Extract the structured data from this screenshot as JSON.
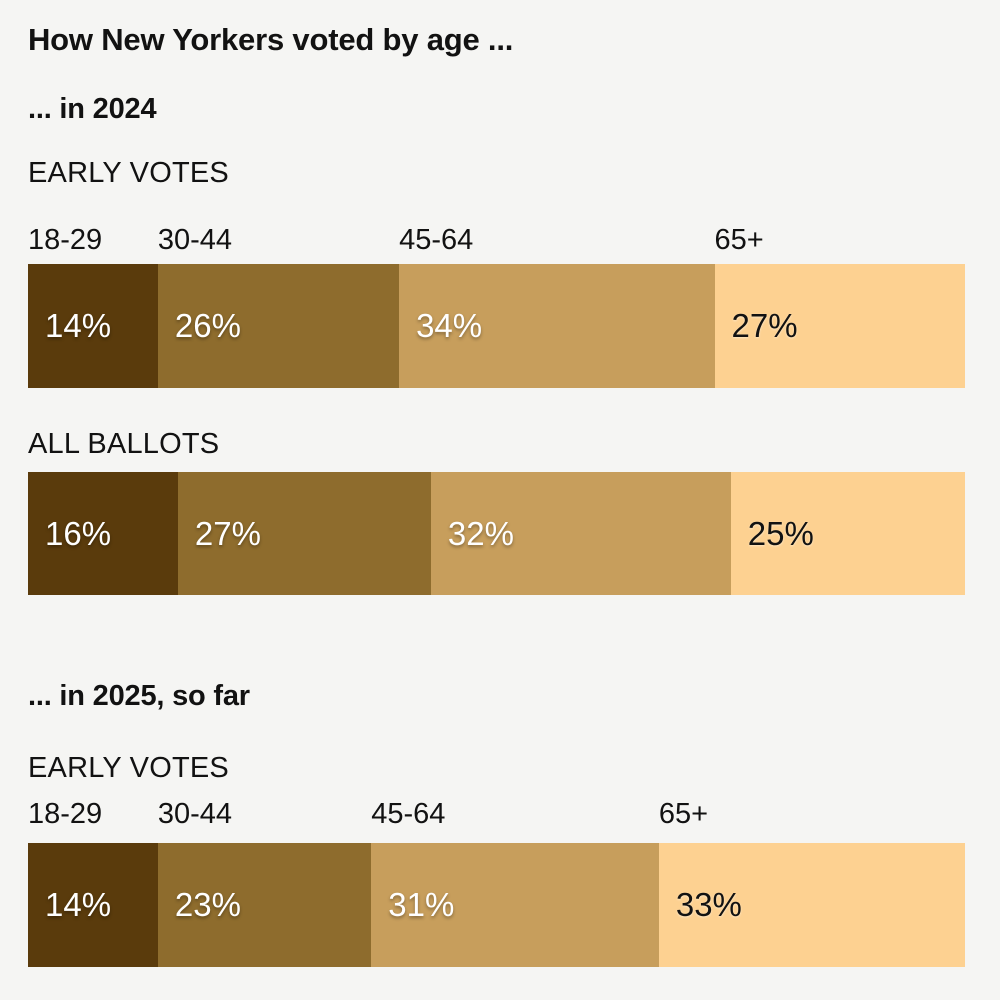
{
  "page": {
    "background_color": "#f5f5f3",
    "text_color": "#121212",
    "title": "How New Yorkers voted by age ..."
  },
  "sections": [
    {
      "heading": "... in 2024",
      "charts": [
        {
          "label": "EARLY VOTES",
          "values_pct": [
            14,
            26,
            34,
            27
          ]
        },
        {
          "label": "ALL BALLOTS",
          "values_pct": [
            16,
            27,
            32,
            25
          ]
        }
      ]
    },
    {
      "heading": "... in 2025, so far",
      "charts": [
        {
          "label": "EARLY VOTES",
          "values_pct": [
            14,
            23,
            31,
            33
          ]
        }
      ]
    }
  ],
  "chart_data": {
    "type": "bar",
    "variant": "horizontal-stacked-percentage",
    "title": "How New Yorkers voted by age ...",
    "categories": [
      "18-29",
      "30-44",
      "45-64",
      "65+"
    ],
    "segment_colors": [
      "#5a3b0c",
      "#8e6c2d",
      "#c79e5c",
      "#fdd191"
    ],
    "value_label_colors": [
      "#ffffff",
      "#ffffff",
      "#ffffff",
      "#121212"
    ],
    "unit": "%",
    "xlim": [
      0,
      100
    ],
    "legend": "none",
    "grid": false,
    "age_labels_shown_above": "first bar of each group",
    "bars": [
      {
        "group": "... in 2024",
        "label": "EARLY VOTES",
        "values": [
          14,
          26,
          34,
          27
        ]
      },
      {
        "group": "... in 2024",
        "label": "ALL BALLOTS",
        "values": [
          16,
          27,
          32,
          25
        ]
      },
      {
        "group": "... in 2025, so far",
        "label": "EARLY VOTES",
        "values": [
          14,
          23,
          31,
          33
        ]
      }
    ]
  }
}
